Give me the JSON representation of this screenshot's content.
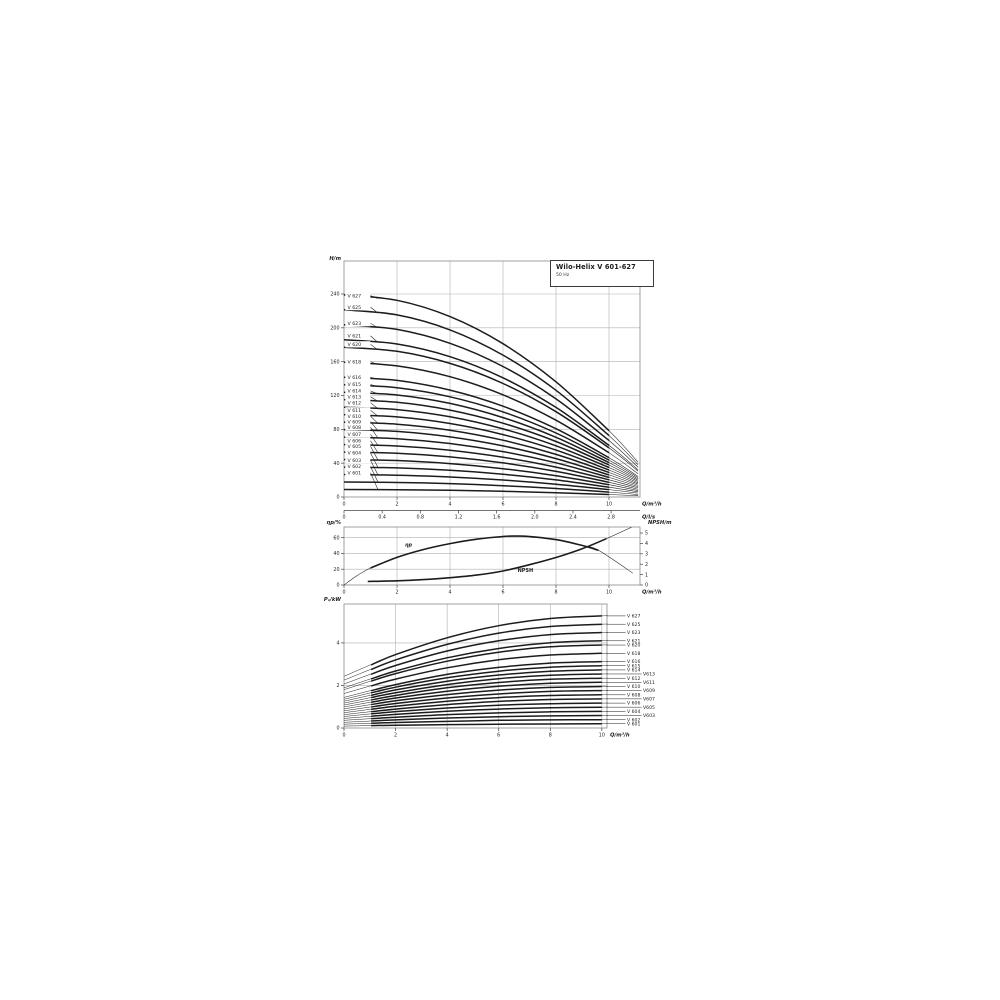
{
  "header_box": {
    "title": "Wilo-Helix V 601-627",
    "subtitle": "50 Hz"
  },
  "chart_data": [
    {
      "id": "head_curves",
      "type": "line",
      "title": "Wilo-Helix V 601-627",
      "subtitle": "50 Hz",
      "ylabel": "H/m",
      "xlabel": "Q/m³/h",
      "xlabel_secondary": "Q/l/s",
      "xlim": [
        0,
        11.17
      ],
      "ylim": [
        0,
        279
      ],
      "grid": true,
      "xticks": [
        0,
        2,
        4,
        6,
        8,
        10
      ],
      "yticks": [
        0,
        40,
        80,
        120,
        160,
        200,
        240
      ],
      "x2ticks": [
        0,
        0.4,
        0.8,
        1.2,
        1.6,
        2.0,
        2.4,
        2.8
      ],
      "x2tick_labels": [
        "0",
        "0.4",
        "0.8",
        "1.2",
        "1.6",
        "2.0",
        "2.4",
        "2.8"
      ],
      "x": [
        0,
        2,
        4,
        6,
        8,
        10,
        11.1
      ],
      "series": [
        {
          "name": "V 627",
          "label_H": 238.0,
          "values": [
            238.9,
            232.5,
            213.3,
            181.2,
            136.2,
            78.4,
            41.1
          ]
        },
        {
          "name": "V 625",
          "label_H": 224.5,
          "values": [
            221.3,
            215.3,
            197.5,
            167.7,
            126.1,
            72.6,
            38.1
          ]
        },
        {
          "name": "V 623",
          "label_H": 205.5,
          "values": [
            203.6,
            198.1,
            181.7,
            154.3,
            116.0,
            66.8,
            35.1
          ]
        },
        {
          "name": "V 621",
          "label_H": 190.5,
          "values": [
            185.9,
            180.9,
            165.9,
            140.9,
            105.9,
            61.0,
            32.0
          ]
        },
        {
          "name": "V 620",
          "label_H": 180.5,
          "values": [
            177.0,
            172.2,
            158.0,
            134.2,
            100.9,
            58.1,
            30.5
          ]
        },
        {
          "name": "V 618",
          "label_H": 160.0,
          "values": [
            159.3,
            155.0,
            142.2,
            120.8,
            90.8,
            52.3,
            27.4
          ]
        },
        {
          "name": "V 616",
          "label_H": 141.5,
          "values": [
            141.6,
            137.8,
            126.4,
            107.4,
            80.7,
            46.5,
            24.4
          ]
        },
        {
          "name": "V 615",
          "label_H": 133.0,
          "values": [
            132.8,
            129.2,
            118.5,
            100.6,
            75.7,
            43.6,
            22.9
          ]
        },
        {
          "name": "V 614",
          "label_H": 125.5,
          "values": [
            123.9,
            120.6,
            110.6,
            93.9,
            70.6,
            40.7,
            21.3
          ]
        },
        {
          "name": "V 613",
          "label_H": 118.5,
          "values": [
            115.1,
            112.0,
            102.7,
            87.2,
            65.6,
            37.8,
            19.8
          ]
        },
        {
          "name": "V 612",
          "label_H": 111.5,
          "values": [
            106.2,
            103.3,
            94.8,
            80.5,
            60.5,
            34.9,
            18.3
          ]
        },
        {
          "name": "V 611",
          "label_H": 102.5,
          "values": [
            97.4,
            94.7,
            86.9,
            73.8,
            55.5,
            31.9,
            16.8
          ]
        },
        {
          "name": "V 610",
          "label_H": 95.5,
          "values": [
            88.5,
            86.1,
            79.0,
            67.1,
            50.4,
            29.0,
            15.2
          ]
        },
        {
          "name": "V 609",
          "label_H": 89.0,
          "values": [
            79.7,
            77.5,
            71.1,
            60.4,
            45.4,
            26.1,
            13.7
          ]
        },
        {
          "name": "V 608",
          "label_H": 82.5,
          "values": [
            70.8,
            68.9,
            63.2,
            53.7,
            40.4,
            23.2,
            12.2
          ]
        },
        {
          "name": "V 607",
          "label_H": 74.0,
          "values": [
            62.0,
            60.3,
            55.3,
            47.0,
            35.3,
            20.3,
            10.7
          ]
        },
        {
          "name": "V 606",
          "label_H": 66.5,
          "values": [
            53.1,
            51.7,
            47.4,
            40.3,
            30.3,
            17.4,
            9.1
          ]
        },
        {
          "name": "V 605",
          "label_H": 60.0,
          "values": [
            44.3,
            43.1,
            39.5,
            33.5,
            25.2,
            14.5,
            7.6
          ]
        },
        {
          "name": "V 604",
          "label_H": 52.0,
          "values": [
            35.4,
            34.4,
            31.6,
            26.8,
            20.2,
            11.6,
            6.1
          ]
        },
        {
          "name": "V 603",
          "label_H": 43.5,
          "values": [
            26.6,
            25.8,
            23.7,
            20.1,
            15.1,
            8.7,
            4.6
          ]
        },
        {
          "name": "V 602",
          "label_H": 36.0,
          "values": [
            17.7,
            17.2,
            15.8,
            13.4,
            10.1,
            5.8,
            3.0
          ]
        },
        {
          "name": "V 601",
          "label_H": 28.5,
          "values": [
            8.9,
            8.6,
            7.9,
            6.7,
            5.0,
            2.9,
            1.5
          ]
        }
      ]
    },
    {
      "id": "efficiency_npsh",
      "type": "line",
      "ylabel_left": "ηp/%",
      "ylabel_right": "NPSH/m",
      "xlabel": "Q/m³/h",
      "xlim": [
        0,
        11.17
      ],
      "ylim_left": [
        0,
        73.5
      ],
      "ylim_right": [
        0,
        5.58
      ],
      "grid": true,
      "xticks": [
        0,
        2,
        4,
        6,
        8,
        10
      ],
      "yticks_left": [
        0,
        20,
        40,
        60
      ],
      "yticks_right": [
        0,
        1,
        2,
        3,
        4,
        5
      ],
      "series": [
        {
          "name": "ηp",
          "axis": "left",
          "x": [
            0,
            0.5,
            1,
            2,
            3,
            4,
            5,
            6,
            6.5,
            7,
            8,
            9,
            9.6,
            10.9
          ],
          "values": [
            0,
            12,
            21.5,
            35,
            45,
            52.5,
            58,
            61.5,
            62,
            61.5,
            57.5,
            50,
            44,
            15
          ],
          "thick_range": [
            1,
            9.6
          ],
          "label_at": [
            2.3,
            49
          ]
        },
        {
          "name": "NPSH",
          "axis": "right",
          "x": [
            0.9,
            2,
            3,
            4,
            5,
            6,
            7,
            8,
            9,
            9.9,
            10.85
          ],
          "values": [
            0.35,
            0.4,
            0.52,
            0.7,
            0.95,
            1.35,
            1.95,
            2.65,
            3.5,
            4.45,
            5.55
          ],
          "thick_range": [
            0.9,
            9.9
          ],
          "label_at": [
            6.55,
            1.25
          ]
        }
      ]
    },
    {
      "id": "power_curves",
      "type": "line",
      "ylabel": "P₁/kW",
      "xlabel": "Q/m³/h",
      "xlim": [
        0,
        10.2
      ],
      "ylim": [
        0,
        5.83
      ],
      "grid": true,
      "xticks": [
        0,
        2,
        4,
        6,
        8,
        10
      ],
      "yticks": [
        0,
        2,
        4
      ],
      "x": [
        0,
        2,
        4,
        6,
        8,
        10
      ],
      "series": [
        {
          "name": "V 627",
          "label": "V 627",
          "label_column": 0,
          "values": [
            2.43,
            3.45,
            4.24,
            4.81,
            5.15,
            5.27
          ]
        },
        {
          "name": "V 625",
          "label": "V 625",
          "label_column": 0,
          "values": [
            2.25,
            3.2,
            3.93,
            4.46,
            4.77,
            4.88
          ]
        },
        {
          "name": "V 623",
          "label": "V 623",
          "label_column": 0,
          "values": [
            2.07,
            2.94,
            3.62,
            4.1,
            4.39,
            4.49
          ]
        },
        {
          "name": "V 621",
          "label": "V 621",
          "label_column": 0,
          "values": [
            1.89,
            2.68,
            3.3,
            3.74,
            4.01,
            4.1
          ]
        },
        {
          "name": "V 620",
          "label": "V 620",
          "label_column": 0,
          "values": [
            1.8,
            2.56,
            3.14,
            3.56,
            3.82,
            3.9
          ]
        },
        {
          "name": "V 618",
          "label": "V 618",
          "label_column": 0,
          "values": [
            1.62,
            2.3,
            2.83,
            3.21,
            3.43,
            3.51
          ]
        },
        {
          "name": "V 616",
          "label": "V 616",
          "label_column": 0,
          "values": [
            1.44,
            2.04,
            2.52,
            2.85,
            3.05,
            3.12
          ]
        },
        {
          "name": "V 615",
          "label": "V 615",
          "label_column": 0,
          "values": [
            1.35,
            1.92,
            2.36,
            2.67,
            2.86,
            2.93
          ]
        },
        {
          "name": "V 614",
          "label": "V 614",
          "label_column": 0,
          "values": [
            1.26,
            1.79,
            2.2,
            2.49,
            2.67,
            2.73
          ]
        },
        {
          "name": "V 613",
          "label": "V613",
          "label_column": 1,
          "values": [
            1.17,
            1.66,
            2.04,
            2.32,
            2.48,
            2.54
          ]
        },
        {
          "name": "V 612",
          "label": "V 612",
          "label_column": 0,
          "values": [
            1.08,
            1.53,
            1.89,
            2.14,
            2.29,
            2.34
          ]
        },
        {
          "name": "V 611",
          "label": "V611",
          "label_column": 1,
          "values": [
            0.99,
            1.41,
            1.73,
            1.96,
            2.1,
            2.15
          ]
        },
        {
          "name": "V 610",
          "label": "V 610",
          "label_column": 0,
          "values": [
            0.9,
            1.28,
            1.57,
            1.78,
            1.91,
            1.95
          ]
        },
        {
          "name": "V 609",
          "label": "V609",
          "label_column": 1,
          "values": [
            0.81,
            1.15,
            1.41,
            1.6,
            1.72,
            1.76
          ]
        },
        {
          "name": "V 608",
          "label": "V 608",
          "label_column": 0,
          "values": [
            0.72,
            1.02,
            1.26,
            1.43,
            1.53,
            1.56
          ]
        },
        {
          "name": "V 607",
          "label": "V607",
          "label_column": 1,
          "values": [
            0.63,
            0.89,
            1.1,
            1.25,
            1.34,
            1.37
          ]
        },
        {
          "name": "V 606",
          "label": "V 606",
          "label_column": 0,
          "values": [
            0.54,
            0.77,
            0.94,
            1.07,
            1.14,
            1.17
          ]
        },
        {
          "name": "V 605",
          "label": "V605",
          "label_column": 1,
          "values": [
            0.45,
            0.64,
            0.79,
            0.89,
            0.95,
            0.98
          ]
        },
        {
          "name": "V 604",
          "label": "V 604",
          "label_column": 0,
          "values": [
            0.36,
            0.51,
            0.63,
            0.71,
            0.76,
            0.78
          ]
        },
        {
          "name": "V 603",
          "label": "V603",
          "label_column": 1,
          "values": [
            0.27,
            0.38,
            0.47,
            0.53,
            0.57,
            0.59
          ]
        },
        {
          "name": "V 602",
          "label": "V 602",
          "label_column": 0,
          "values": [
            0.18,
            0.26,
            0.31,
            0.36,
            0.38,
            0.39
          ]
        },
        {
          "name": "V 601",
          "label": "V 601",
          "label_column": 0,
          "values": [
            0.09,
            0.13,
            0.16,
            0.18,
            0.19,
            0.2
          ]
        }
      ]
    }
  ],
  "colors": {
    "curve": "#1c1c1c",
    "grid": "#b0b0b0",
    "frame": "#8a8a8a",
    "axis_text": "#222222",
    "background": "#ffffff"
  }
}
